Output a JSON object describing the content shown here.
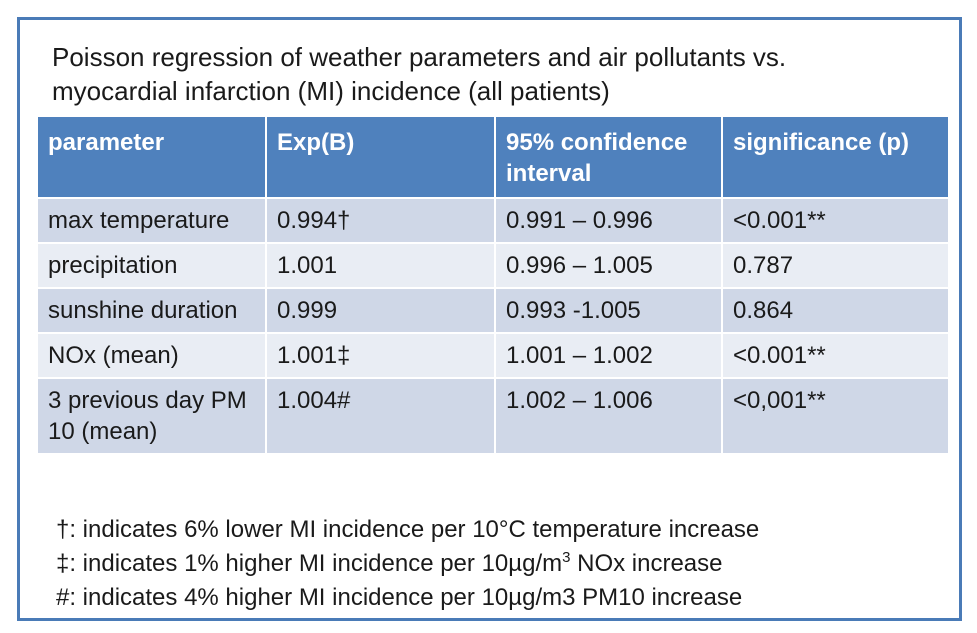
{
  "title": {
    "line1": "Poisson regression of weather parameters and air pollutants  vs.",
    "line2": "myocardial infarction (MI) incidence (all patients)"
  },
  "table": {
    "headers": [
      "parameter",
      "Exp(B)",
      "95% confidence interval",
      "significance (p)"
    ],
    "rows": [
      [
        "max temperature",
        "0.994†",
        "0.991 – 0.996",
        "<0.001**"
      ],
      [
        "precipitation",
        "1.001",
        "0.996 – 1.005",
        "0.787"
      ],
      [
        "sunshine duration",
        "0.999",
        "0.993 -1.005",
        "0.864"
      ],
      [
        "NOx (mean)",
        "1.001‡",
        "1.001 – 1.002",
        "<0.001**"
      ],
      [
        "3 previous day PM 10 (mean)",
        "1.004#",
        "1.002 – 1.006",
        "<0,001**"
      ]
    ]
  },
  "footnotes": {
    "dagger": "†: indicates 6% lower MI incidence per 10°C temperature increase",
    "ddagger_pre": "‡: indicates 1% higher MI incidence per 10µg/m",
    "ddagger_sup": "3",
    "ddagger_post": " NOx increase",
    "hash": "#: indicates  4% higher MI incidence per 10µg/m3 PM10 increase"
  },
  "colors": {
    "border": "#4a7bb7",
    "header_bg": "#4f81bd",
    "row_odd": "#cfd7e7",
    "row_even": "#e9edf4"
  }
}
